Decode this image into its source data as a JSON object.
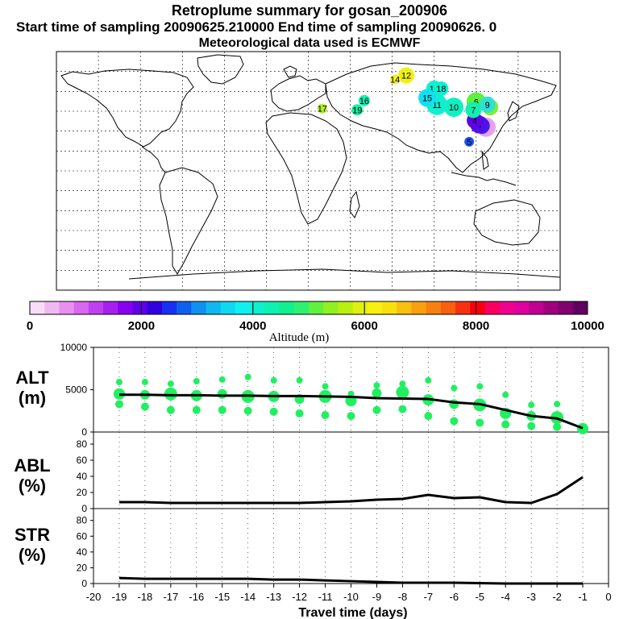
{
  "header": {
    "title": "Retroplume summary for gosan_200906",
    "sampling": "Start time of sampling 20090625.210000     End time of sampling 20090626.     0",
    "met": "Meteorological data used is ECMWF"
  },
  "colorbar": {
    "ticks": [
      "0",
      "2000",
      "4000",
      "6000",
      "8000",
      "10000"
    ],
    "label": "Altitude  (m)",
    "colors": [
      "#f8dcf8",
      "#f0b8f0",
      "#e890f0",
      "#d868f0",
      "#c040f0",
      "#a820f0",
      "#8800f0",
      "#6000e8",
      "#3000e0",
      "#1830f0",
      "#1060f0",
      "#1090f0",
      "#10b8f0",
      "#10d8f0",
      "#10f0f0",
      "#10f0d0",
      "#10f0b0",
      "#10f090",
      "#30f070",
      "#60f040",
      "#90f020",
      "#b8f010",
      "#e0f010",
      "#f8f010",
      "#f8e010",
      "#f8c010",
      "#f8a010",
      "#f88010",
      "#f86010",
      "#f83010",
      "#f80010",
      "#f80060",
      "#f00090",
      "#e000a0",
      "#c00090",
      "#a00080",
      "#800070",
      "#600060"
    ]
  },
  "map": {
    "labels": [
      {
        "t": "1",
        "lon": 127,
        "lat": 33,
        "c": "#e8a0f0",
        "r": 12
      },
      {
        "t": "2",
        "lon": 124,
        "lat": 34,
        "c": "#4020e0",
        "r": 10
      },
      {
        "t": "3",
        "lon": 122,
        "lat": 35,
        "c": "#5010e8",
        "r": 11
      },
      {
        "t": "4",
        "lon": 119,
        "lat": 38,
        "c": "#6000e8",
        "r": 10
      },
      {
        "t": "5",
        "lon": 115,
        "lat": 22,
        "c": "#2050f0",
        "r": 6
      },
      {
        "t": "6",
        "lon": 120,
        "lat": 52,
        "c": "#60f040",
        "r": 12
      },
      {
        "t": "7",
        "lon": 118,
        "lat": 46,
        "c": "#10f0b0",
        "r": 10
      },
      {
        "t": "8",
        "lon": 130,
        "lat": 48,
        "c": "#80f030",
        "r": 10
      },
      {
        "t": "9",
        "lon": 128,
        "lat": 50,
        "c": "#30e0d0",
        "r": 10
      },
      {
        "t": "10",
        "lon": 104,
        "lat": 48,
        "c": "#10f0c0",
        "r": 12
      },
      {
        "t": "11",
        "lon": 92,
        "lat": 50,
        "c": "#10f0d0",
        "r": 13
      },
      {
        "t": "12",
        "lon": 70,
        "lat": 72,
        "c": "#f0f010",
        "r": 10
      },
      {
        "t": "13",
        "lon": 90,
        "lat": 62,
        "c": "#10f0d0",
        "r": 10
      },
      {
        "t": "14",
        "lon": 62,
        "lat": 69,
        "c": "#f0f030",
        "r": 6
      },
      {
        "t": "15",
        "lon": 85,
        "lat": 55,
        "c": "#10e0f0",
        "r": 11
      },
      {
        "t": "16",
        "lon": 40,
        "lat": 53,
        "c": "#10f0b0",
        "r": 7
      },
      {
        "t": "17",
        "lon": 10,
        "lat": 47,
        "c": "#b0f020",
        "r": 6
      },
      {
        "t": "18",
        "lon": 95,
        "lat": 62,
        "c": "#10f0d0",
        "r": 9
      },
      {
        "t": "19",
        "lon": 35,
        "lat": 46,
        "c": "#10f0a0",
        "r": 7
      }
    ]
  },
  "panels": {
    "alt": {
      "label1": "ALT",
      "label2": "(m)",
      "ticks": [
        "0",
        "5000",
        "10000"
      ]
    },
    "abl": {
      "label1": "ABL",
      "label2": "(%)",
      "ticks": [
        "0",
        "20",
        "40",
        "60",
        "80"
      ]
    },
    "str": {
      "label1": "STR",
      "label2": "(%)",
      "ticks": [
        "0",
        "20",
        "40",
        "60",
        "80"
      ]
    }
  },
  "xaxis": {
    "ticks": [
      "-20",
      "-19",
      "-18",
      "-17",
      "-16",
      "-15",
      "-14",
      "-13",
      "-12",
      "-11",
      "-10",
      "-9",
      "-8",
      "-7",
      "-6",
      "-5",
      "-4",
      "-3",
      "-2",
      "-1",
      "0"
    ],
    "title": "Travel time (days)"
  },
  "chart_data": [
    {
      "type": "line",
      "title": "ALT (m)",
      "x": [
        -19,
        -18,
        -17,
        -16,
        -15,
        -14,
        -13,
        -12,
        -11,
        -10,
        -9,
        -8,
        -7,
        -6,
        -5,
        -4,
        -3,
        -2,
        -1
      ],
      "series": [
        {
          "name": "mean altitude",
          "values": [
            4400,
            4400,
            4350,
            4350,
            4300,
            4300,
            4250,
            4250,
            4200,
            4150,
            4000,
            3950,
            3900,
            3500,
            3300,
            2600,
            1900,
            1600,
            450
          ]
        }
      ],
      "clusters": [
        {
          "x": -19,
          "y": [
            5900,
            4500,
            3300
          ]
        },
        {
          "x": -18,
          "y": [
            5900,
            4400,
            3000
          ]
        },
        {
          "x": -17,
          "y": [
            5700,
            4500,
            2600
          ]
        },
        {
          "x": -16,
          "y": [
            6000,
            4300,
            2600
          ]
        },
        {
          "x": -15,
          "y": [
            6200,
            4500,
            2600
          ]
        },
        {
          "x": -14,
          "y": [
            6500,
            4200,
            2500
          ]
        },
        {
          "x": -13,
          "y": [
            6100,
            4200,
            2400
          ]
        },
        {
          "x": -12,
          "y": [
            6100,
            3900,
            2200
          ]
        },
        {
          "x": -11,
          "y": [
            5400,
            4200,
            2000
          ]
        },
        {
          "x": -10,
          "y": [
            4500,
            3700,
            1900
          ]
        },
        {
          "x": -9,
          "y": [
            5500,
            4600,
            2600
          ]
        },
        {
          "x": -8,
          "y": [
            5700,
            4700,
            2700
          ]
        },
        {
          "x": -7,
          "y": [
            6100,
            3800,
            1900
          ]
        },
        {
          "x": -6,
          "y": [
            5200,
            3300,
            1300
          ]
        },
        {
          "x": -5,
          "y": [
            5400,
            3200,
            1100
          ]
        },
        {
          "x": -4,
          "y": [
            4400,
            2200,
            900
          ]
        },
        {
          "x": -3,
          "y": [
            3200,
            1900,
            700
          ]
        },
        {
          "x": -2,
          "y": [
            3300,
            1700,
            600
          ]
        },
        {
          "x": -1,
          "y": [
            600,
            400
          ]
        }
      ],
      "ylim": [
        0,
        10000
      ]
    },
    {
      "type": "line",
      "title": "ABL (%)",
      "x": [
        -19,
        -18,
        -17,
        -16,
        -15,
        -14,
        -13,
        -12,
        -11,
        -10,
        -9,
        -8,
        -7,
        -6,
        -5,
        -4,
        -3,
        -2,
        -1
      ],
      "series": [
        {
          "name": "ABL",
          "values": [
            8,
            8,
            7,
            7,
            7,
            7,
            7,
            7,
            8,
            9,
            11,
            12,
            17,
            13,
            14,
            8,
            7,
            18,
            39
          ]
        }
      ],
      "ylim": [
        0,
        95
      ]
    },
    {
      "type": "line",
      "title": "STR (%)",
      "x": [
        -19,
        -18,
        -17,
        -16,
        -15,
        -14,
        -13,
        -12,
        -11,
        -10,
        -9,
        -8,
        -7,
        -6,
        -5,
        -4,
        -3,
        -2,
        -1
      ],
      "series": [
        {
          "name": "STR",
          "values": [
            7,
            6,
            6,
            6,
            6,
            6,
            5,
            5,
            4,
            3,
            2,
            1,
            1,
            1,
            0.5,
            0,
            0,
            0,
            0
          ]
        }
      ],
      "ylim": [
        0,
        95
      ]
    }
  ]
}
